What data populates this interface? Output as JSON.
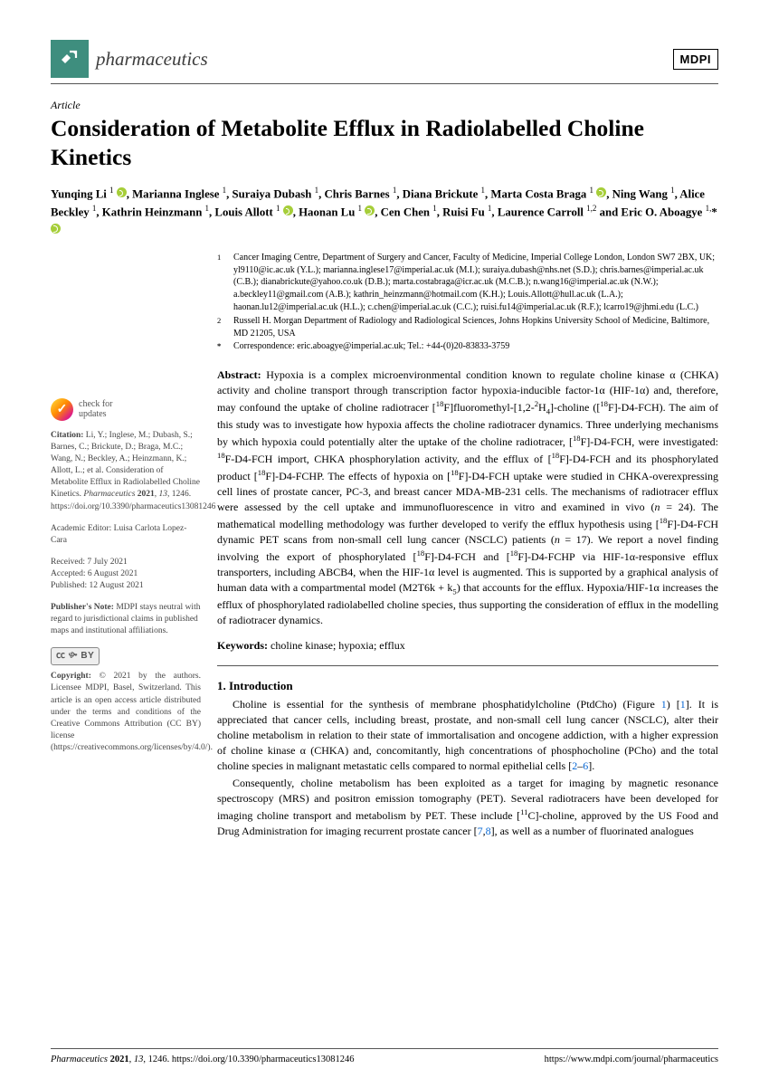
{
  "journal": {
    "name": "pharmaceutics",
    "publisher_logo": "MDPI"
  },
  "article_type": "Article",
  "title": "Consideration of Metabolite Efflux in Radiolabelled Choline Kinetics",
  "authors_html": "Yunqing Li <sup>1</sup> <span class='orcid'></span>, Marianna Inglese <sup>1</sup>, Suraiya Dubash <sup>1</sup>, Chris Barnes <sup>1</sup>, Diana Brickute <sup>1</sup>, Marta Costa Braga <sup>1</sup> <span class='orcid'></span>, Ning Wang <sup>1</sup>, Alice Beckley <sup>1</sup>, Kathrin Heinzmann <sup>1</sup>, Louis Allott <sup>1</sup> <span class='orcid'></span>, Haonan Lu <sup>1</sup> <span class='orcid'></span>, Cen Chen <sup>1</sup>, Ruisi Fu <sup>1</sup>, Laurence Carroll <sup>1,2</sup> and Eric O. Aboagye <sup>1,</sup>*<span class='orcid'></span>",
  "affiliations": [
    {
      "n": "1",
      "text": "Cancer Imaging Centre, Department of Surgery and Cancer, Faculty of Medicine, Imperial College London, London SW7 2BX, UK; yl9110@ic.ac.uk (Y.L.); marianna.inglese17@imperial.ac.uk (M.I.); suraiya.dubash@nhs.net (S.D.); chris.barnes@imperial.ac.uk (C.B.); dianabrickute@yahoo.co.uk (D.B.); marta.costabraga@icr.ac.uk (M.C.B.); n.wang16@imperial.ac.uk (N.W.); a.beckley11@gmail.com (A.B.); kathrin_heinzmann@hotmail.com (K.H.); Louis.Allott@hull.ac.uk (L.A.); haonan.lu12@imperial.ac.uk (H.L.); c.chen@imperial.ac.uk (C.C.); ruisi.fu14@imperial.ac.uk (R.F.); lcarro19@jhmi.edu (L.C.)"
    },
    {
      "n": "2",
      "text": "Russell H. Morgan Department of Radiology and Radiological Sciences, Johns Hopkins University School of Medicine, Baltimore, MD 21205, USA"
    },
    {
      "n": "*",
      "text": "Correspondence: eric.aboagye@imperial.ac.uk; Tel.: +44-(0)20-83833-3759"
    }
  ],
  "abstract_label": "Abstract:",
  "abstract": "Hypoxia is a complex microenvironmental condition known to regulate choline kinase α (CHKA) activity and choline transport through transcription factor hypoxia-inducible factor-1α (HIF-1α) and, therefore, may confound the uptake of choline radiotracer [<sup>18</sup>F]fluoromethyl-[1,2-<sup>2</sup>H<sub>4</sub>]-choline ([<sup>18</sup>F]-D4-FCH). The aim of this study was to investigate how hypoxia affects the choline radiotracer dynamics. Three underlying mechanisms by which hypoxia could potentially alter the uptake of the choline radiotracer, [<sup>18</sup>F]-D4-FCH, were investigated: <sup>18</sup>F-D4-FCH import, CHKA phosphorylation activity, and the efflux of [<sup>18</sup>F]-D4-FCH and its phosphorylated product [<sup>18</sup>F]-D4-FCHP. The effects of hypoxia on [<sup>18</sup>F]-D4-FCH uptake were studied in CHKA-overexpressing cell lines of prostate cancer, PC-3, and breast cancer MDA-MB-231 cells. The mechanisms of radiotracer efflux were assessed by the cell uptake and immunofluorescence in vitro and examined in vivo (<i>n</i> = 24). The mathematical modelling methodology was further developed to verify the efflux hypothesis using [<sup>18</sup>F]-D4-FCH dynamic PET scans from non-small cell lung cancer (NSCLC) patients (<i>n</i> = 17). We report a novel finding involving the export of phosphorylated [<sup>18</sup>F]-D4-FCH and [<sup>18</sup>F]-D4-FCHP via HIF-1α-responsive efflux transporters, including ABCB4, when the HIF-1α level is augmented. This is supported by a graphical analysis of human data with a compartmental model (M2T6k + k<sub>5</sub>) that accounts for the efflux. Hypoxia/HIF-1α increases the efflux of phosphorylated radiolabelled choline species, thus supporting the consideration of efflux in the modelling of radiotracer dynamics.",
  "keywords_label": "Keywords:",
  "keywords": "choline kinase; hypoxia; efflux",
  "section1_head": "1. Introduction",
  "intro_p1": "Choline is essential for the synthesis of membrane phosphatidylcholine (PtdCho) (Figure <span class='cite-link'>1</span>) [<span class='cite-link'>1</span>]. It is appreciated that cancer cells, including breast, prostate, and non-small cell lung cancer (NSCLC), alter their choline metabolism in relation to their state of immortalisation and oncogene addiction, with a higher expression of choline kinase α (CHKA) and, concomitantly, high concentrations of phosphocholine (PCho) and the total choline species in malignant metastatic cells compared to normal epithelial cells [<span class='cite-link'>2</span>–<span class='cite-link'>6</span>].",
  "intro_p2": "Consequently, choline metabolism has been exploited as a target for imaging by magnetic resonance spectroscopy (MRS) and positron emission tomography (PET). Several radiotracers have been developed for imaging choline transport and metabolism by PET. These include [<sup>11</sup>C]-choline, approved by the US Food and Drug Administration for imaging recurrent prostate cancer [<span class='cite-link'>7</span>,<span class='cite-link'>8</span>], as well as a number of fluorinated analogues",
  "sidebar": {
    "check": "check for\nupdates",
    "citation_label": "Citation:",
    "citation": "Li, Y.; Inglese, M.; Dubash, S.; Barnes, C.; Brickute, D.; Braga, M.C.; Wang, N.; Beckley, A.; Heinzmann, K.; Allott, L.; et al. Consideration of Metabolite Efflux in Radiolabelled Choline Kinetics. <i>Pharmaceutics</i> <b>2021</b>, <i>13</i>, 1246. https://doi.org/10.3390/pharmaceutics13081246",
    "editor_label": "Academic Editor:",
    "editor": "Luisa Carlota Lopez-Cara",
    "dates": "Received: 7 July 2021\nAccepted: 6 August 2021\nPublished: 12 August 2021",
    "pubnote_label": "Publisher's Note:",
    "pubnote": "MDPI stays neutral with regard to jurisdictional claims in published maps and institutional affiliations.",
    "cc_badge": "CC  BY",
    "copyright_label": "Copyright:",
    "copyright": "© 2021 by the authors. Licensee MDPI, Basel, Switzerland. This article is an open access article distributed under the terms and conditions of the Creative Commons Attribution (CC BY) license (https://creativecommons.org/licenses/by/4.0/)."
  },
  "footer": {
    "left": "Pharmaceutics 2021, 13, 1246. https://doi.org/10.3390/pharmaceutics13081246",
    "right": "https://www.mdpi.com/journal/pharmaceutics"
  },
  "colors": {
    "journal_icon_bg": "#3e8e7e",
    "orcid_bg": "#a6ce39",
    "link": "#0968d4",
    "text": "#000000",
    "sidebar_text": "#444444"
  }
}
